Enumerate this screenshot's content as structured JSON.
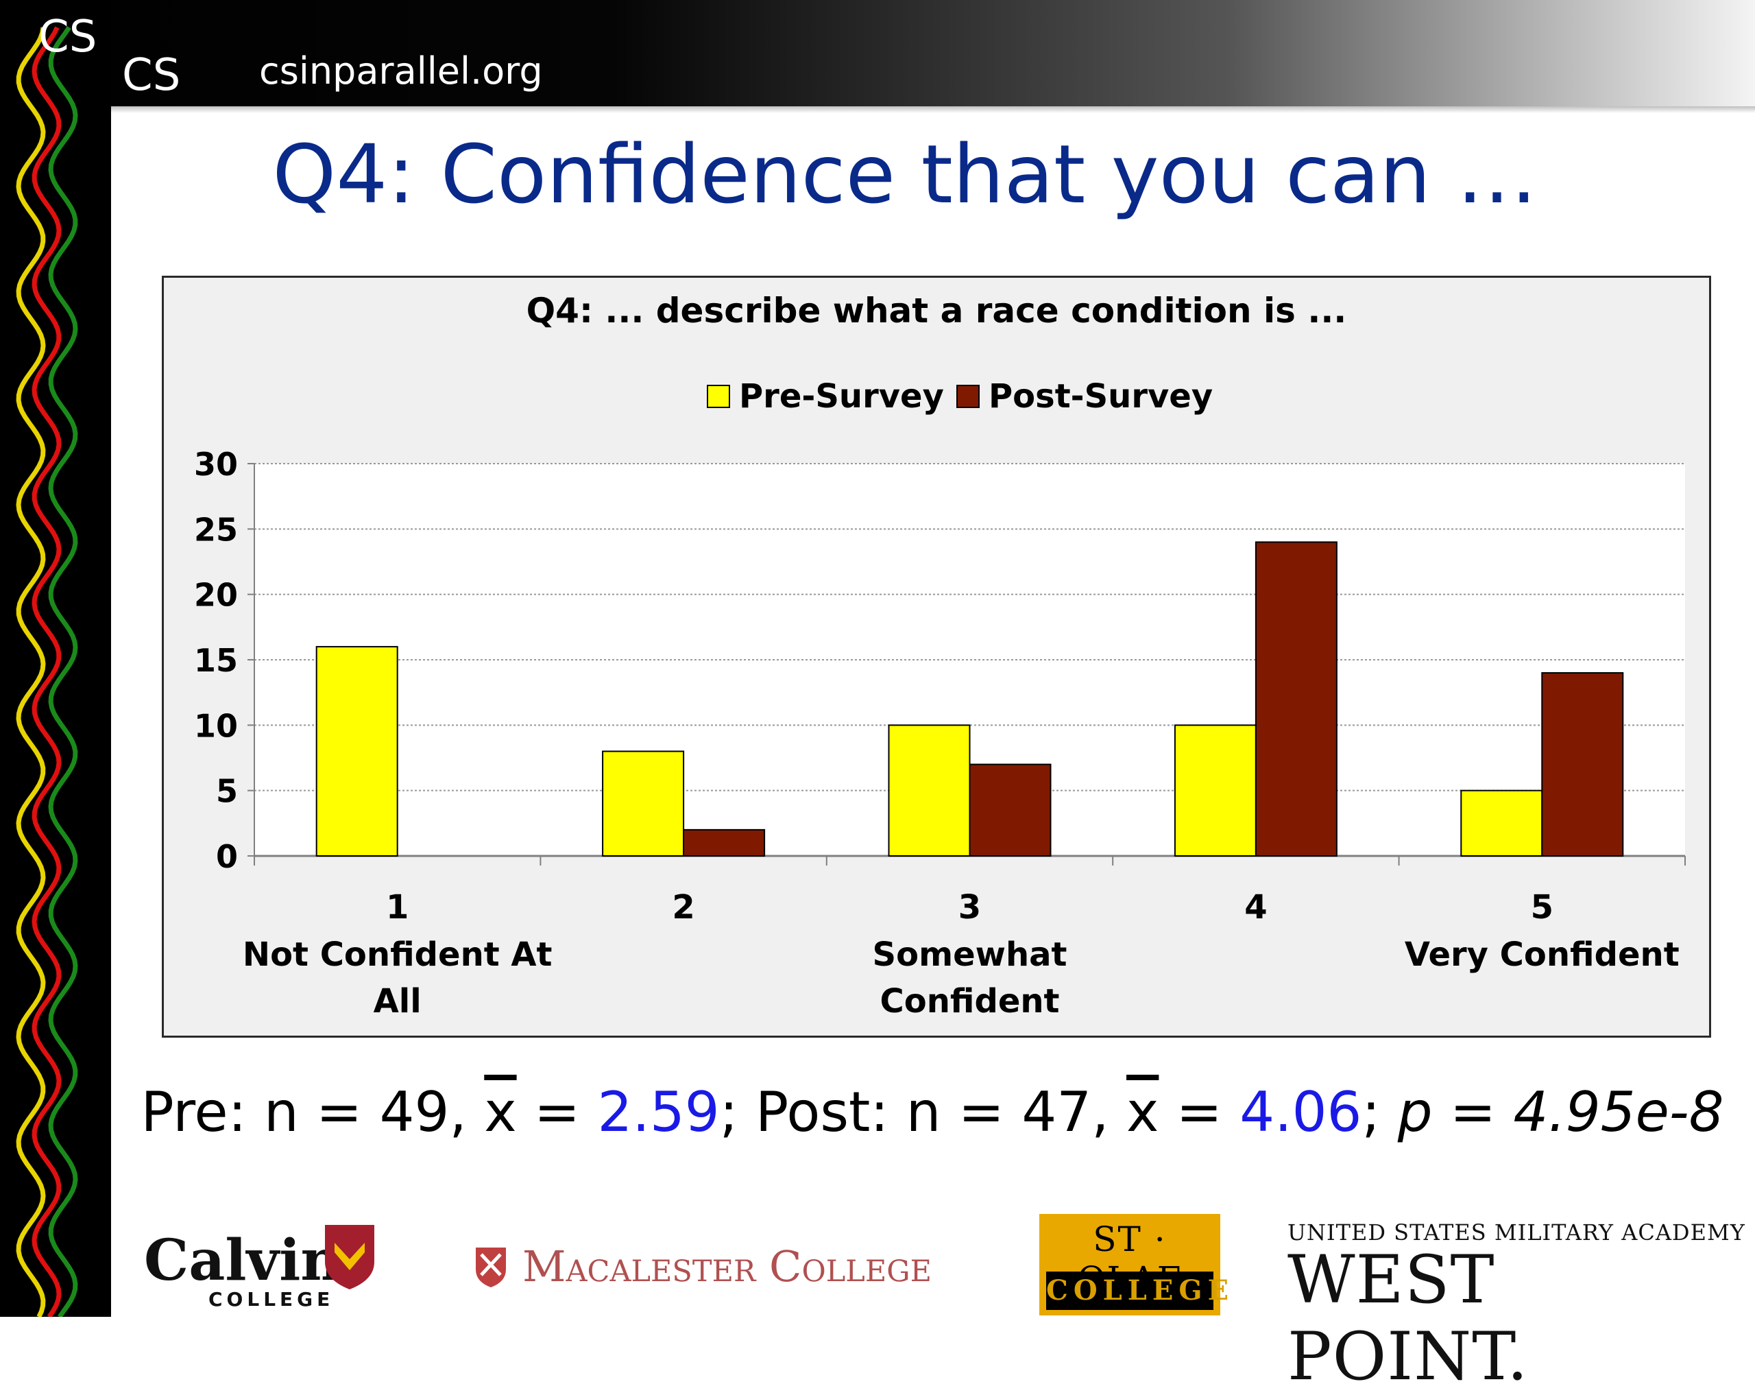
{
  "header": {
    "logo_top": "CS",
    "logo_bottom": "CS",
    "url": "csinparallel.org"
  },
  "slide": {
    "title": "Q4: Confidence that you can …"
  },
  "chart_data": {
    "type": "bar",
    "title": "Q4: ... describe what a race condition is ...",
    "xlabel": "",
    "ylabel": "",
    "categories": [
      "1",
      "2",
      "3",
      "4",
      "5"
    ],
    "category_labels": [
      [
        "Not Confident At",
        "All"
      ],
      [],
      [
        "Somewhat",
        "Confident"
      ],
      [],
      [
        "Very Confident"
      ]
    ],
    "series": [
      {
        "name": "Pre-Survey",
        "values": [
          16,
          8,
          10,
          10,
          5
        ],
        "color": "#ffff00"
      },
      {
        "name": "Post-Survey",
        "values": [
          0,
          2,
          7,
          24,
          14
        ],
        "color": "#7f1a00"
      }
    ],
    "ylim": [
      0,
      30
    ],
    "yticks": [
      "0",
      "5",
      "10",
      "15",
      "20",
      "25",
      "30"
    ],
    "grid": true,
    "legend_position": "top-center"
  },
  "stats": {
    "pre_label": "Pre: n = 49, ",
    "xbar": "x",
    "eq": " = ",
    "pre_mean": "2.59",
    "sep": "; Post: n = 47, ",
    "eq2": " = ",
    "post_mean": "4.06",
    "semi": "; ",
    "p_value": "p = 4.95e-8"
  },
  "sponsors": {
    "calvin": "Calvin",
    "calvin_sub": "COLLEGE",
    "macalester": "Macalester College",
    "stolaf_top": "ST · OLAF",
    "stolaf_bottom": "COLLEGE",
    "westpoint_top": "UNITED STATES MILITARY ACADEMY",
    "westpoint": "WEST POINT."
  },
  "colors": {
    "title": "#0a2a8a",
    "stat_highlight": "#1a1ae6",
    "wave_yellow": "#e8d400",
    "wave_red": "#e01010",
    "wave_green": "#1a8a1a"
  }
}
